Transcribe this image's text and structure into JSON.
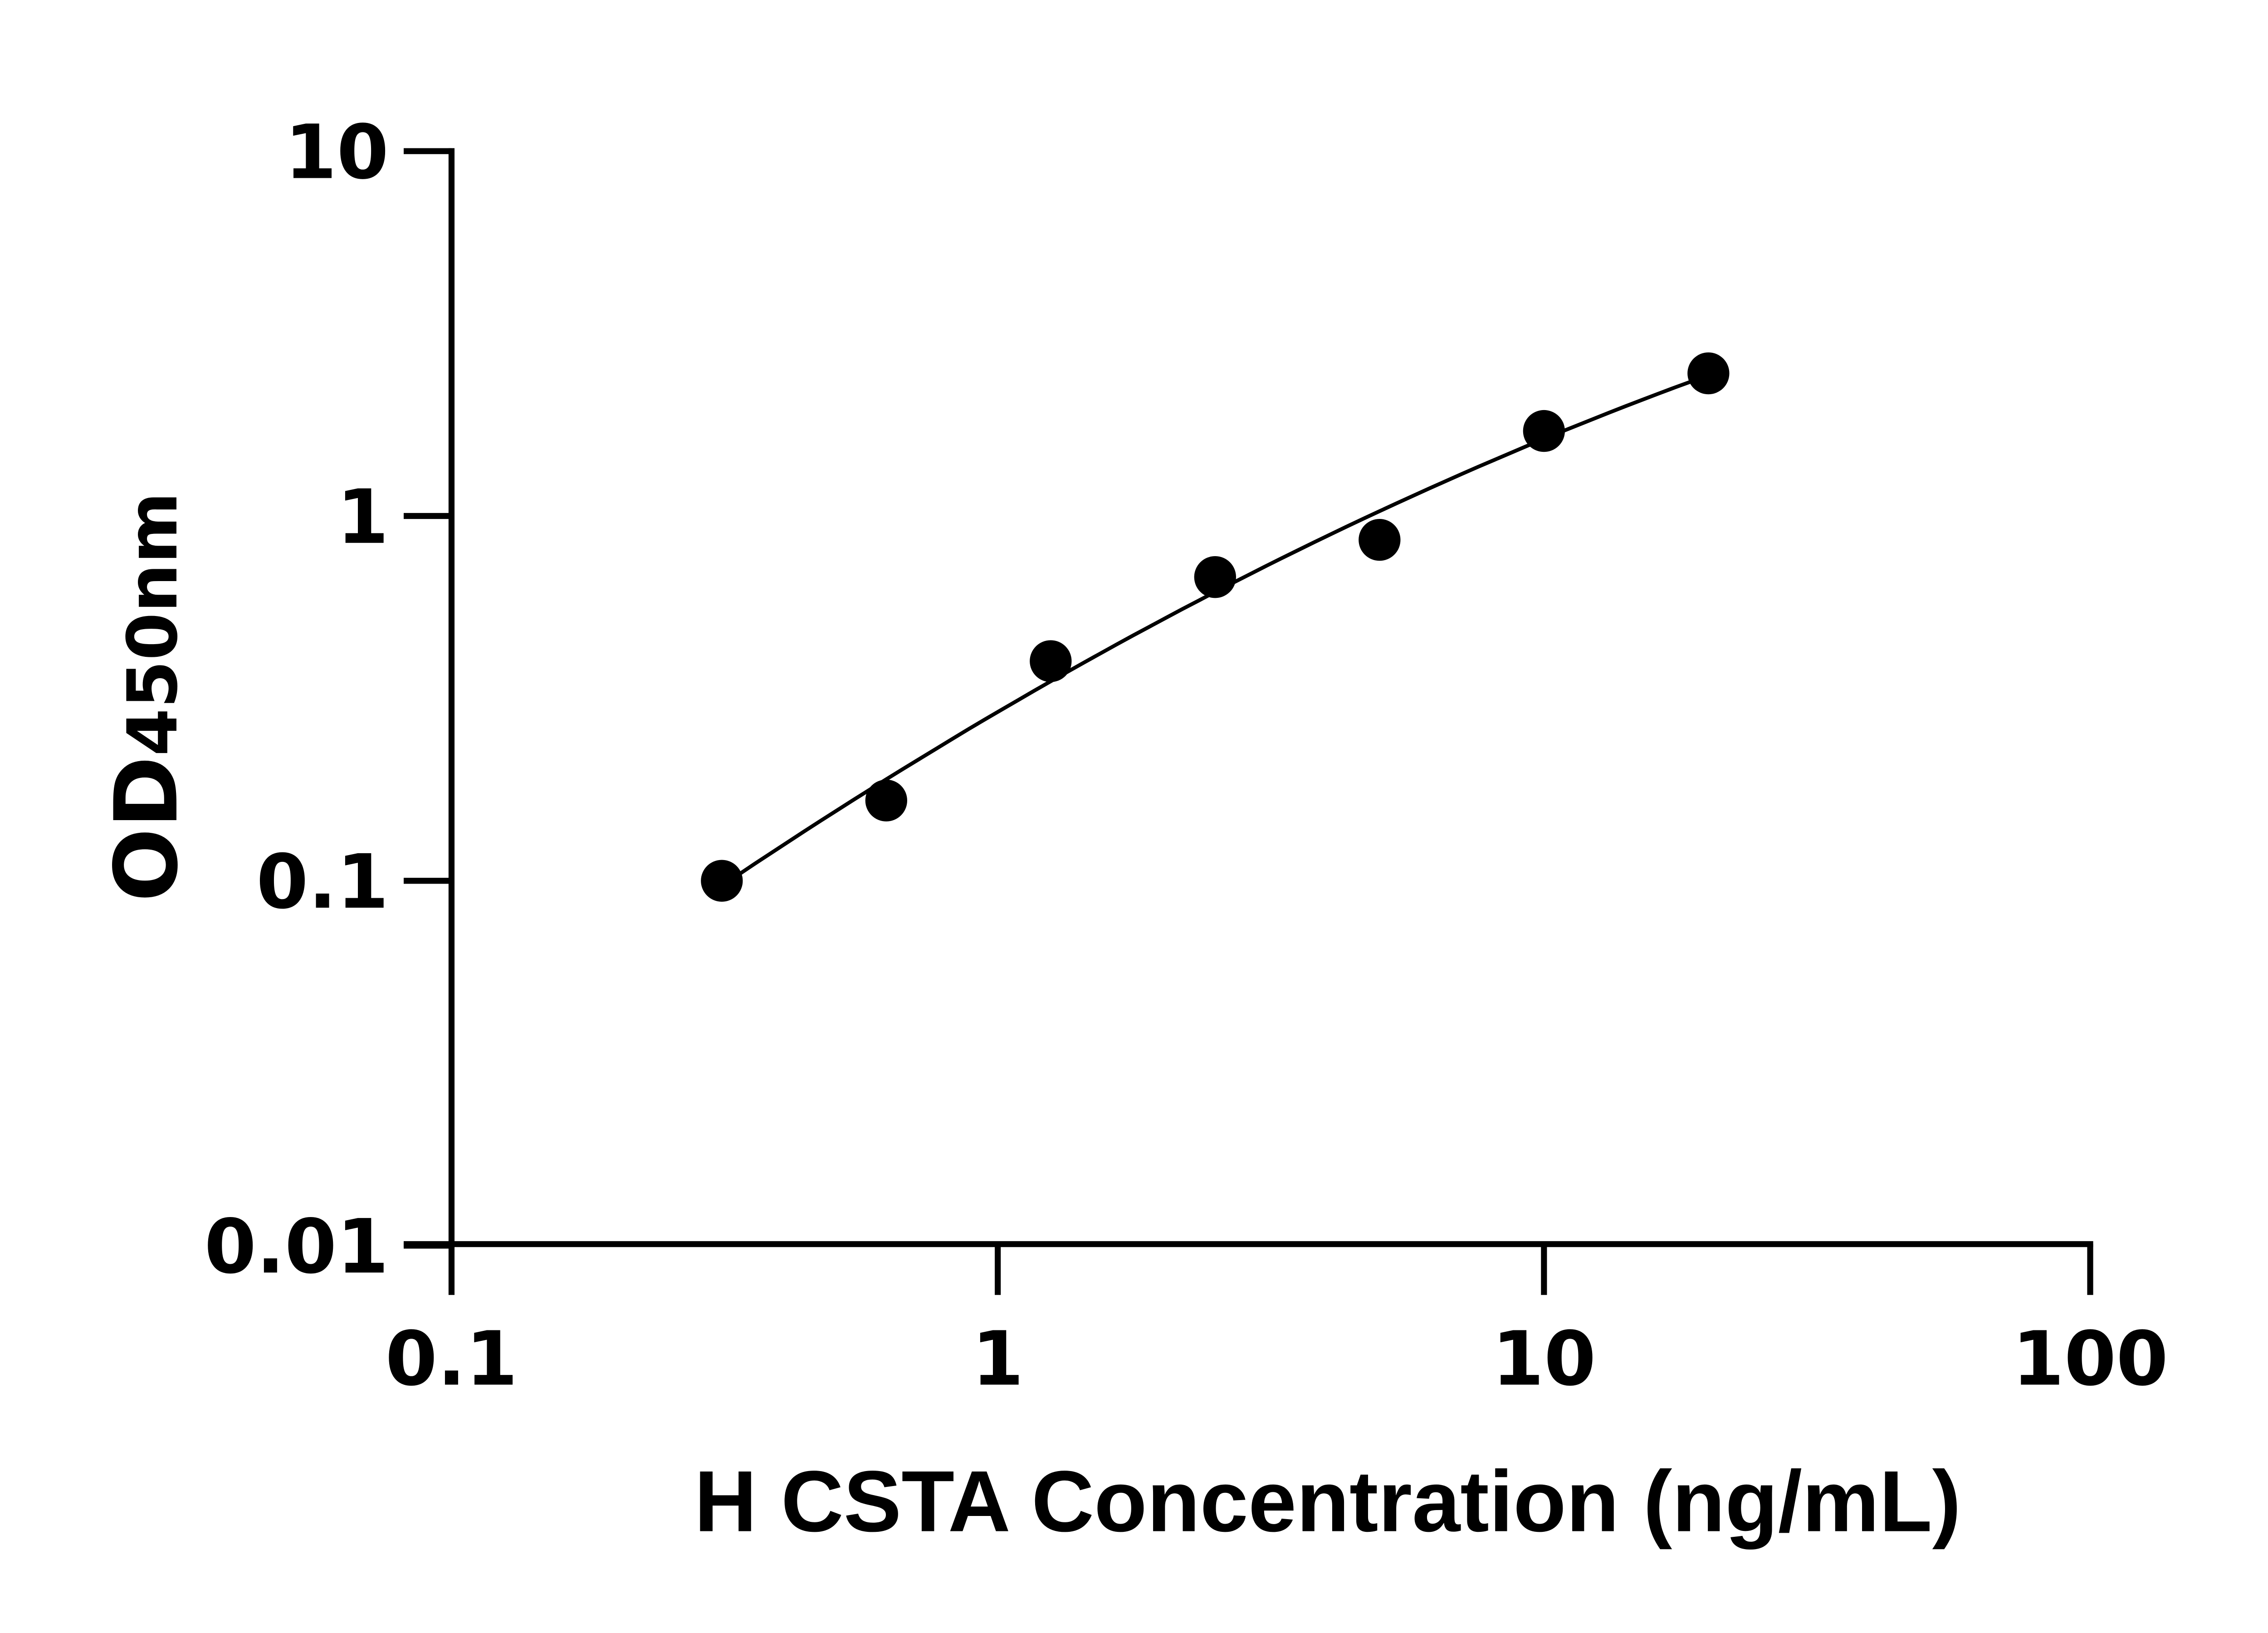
{
  "chart_data": {
    "type": "scatter",
    "title": "",
    "xlabel": "H CSTA Concentration (ng/mL)",
    "ylabel_main": "OD",
    "ylabel_sub": "450nm",
    "x_scale": "log",
    "y_scale": "log",
    "xlim": [
      0.1,
      100
    ],
    "ylim": [
      0.01,
      10
    ],
    "x_ticks": [
      "0.1",
      "1",
      "10",
      "100"
    ],
    "y_ticks": [
      "0.01",
      "0.1",
      "1",
      "10"
    ],
    "grid": false,
    "legend": "none",
    "series": [
      {
        "x": [
          0.3125,
          0.625,
          1.25,
          2.5,
          5,
          10,
          20
        ],
        "y": [
          0.1,
          0.166,
          0.4,
          0.68,
          0.86,
          1.71,
          2.46
        ],
        "marker": "filled-circle",
        "fit_line": true
      }
    ],
    "colors": {
      "marks": "#000000",
      "background": "#ffffff"
    }
  }
}
